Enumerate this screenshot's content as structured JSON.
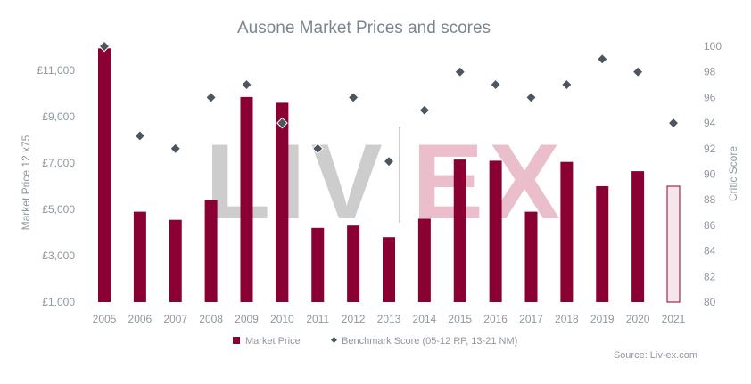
{
  "chart_data": {
    "type": "bar",
    "title": "Ausone Market Prices and scores",
    "categories": [
      "2005",
      "2006",
      "2007",
      "2008",
      "2009",
      "2010",
      "2011",
      "2012",
      "2013",
      "2014",
      "2015",
      "2016",
      "2017",
      "2018",
      "2019",
      "2020",
      "2021"
    ],
    "y_left": {
      "label": "Market Price 12 x75",
      "ticks": [
        "£1,000",
        "£3,000",
        "£5,000",
        "£7,000",
        "£9,000",
        "£11,000"
      ],
      "tick_values": [
        1000,
        3000,
        5000,
        7000,
        9000,
        11000
      ],
      "range": [
        1000,
        12100
      ]
    },
    "y_right": {
      "label": "Critic Score",
      "ticks": [
        "80",
        "82",
        "84",
        "86",
        "88",
        "90",
        "92",
        "94",
        "96",
        "98",
        "100"
      ],
      "tick_values": [
        80,
        82,
        84,
        86,
        88,
        90,
        92,
        94,
        96,
        98,
        100
      ],
      "range": [
        80,
        100
      ]
    },
    "series": [
      {
        "name": "Market Price",
        "type": "bar",
        "axis": "left",
        "values": [
          11950,
          4900,
          4550,
          5400,
          9850,
          9600,
          4200,
          4300,
          3800,
          4600,
          7150,
          7100,
          4900,
          7050,
          6000,
          6650,
          6000
        ],
        "highlight_last": true
      },
      {
        "name": "Benchmark Score (05-12 RP, 13-21 NM)",
        "type": "scatter",
        "axis": "right",
        "values": [
          100,
          93,
          92,
          96,
          97,
          94,
          92,
          96,
          91,
          95,
          98,
          97,
          96,
          97,
          99,
          98,
          94
        ]
      }
    ],
    "legend_position": "bottom-center",
    "grid": false,
    "source": "Source: Liv-ex.com",
    "watermark": "LIV-EX",
    "colors": {
      "bar": "#8a0033",
      "bar_last_fill": "#f5e6ec",
      "bar_last_stroke": "#8a0033",
      "marker": "#4d5660",
      "marker_stroke": "#ffffff",
      "title": "#7b8591",
      "axis_text": "#8f97a0",
      "watermark_grey": "#c8c8c8",
      "watermark_pink": "#e8b8c6"
    }
  }
}
